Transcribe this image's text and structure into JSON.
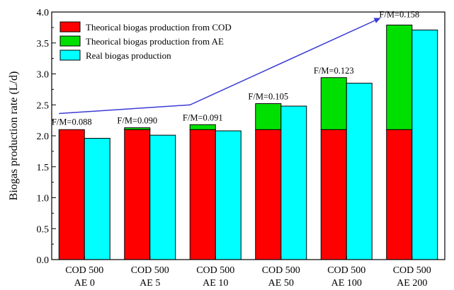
{
  "chart_data": {
    "type": "bar",
    "title": "",
    "xlabel": "",
    "ylabel": "Biogas production rate (L/d)",
    "ylim": [
      0,
      4.0
    ],
    "yticks": [
      "0.0",
      "0.5",
      "1.0",
      "1.5",
      "2.0",
      "2.5",
      "3.0",
      "3.5",
      "4.0"
    ],
    "categories": [
      [
        "COD 500",
        "AE 0"
      ],
      [
        "COD 500",
        "AE 5"
      ],
      [
        "COD 500",
        "AE 10"
      ],
      [
        "COD 500",
        "AE 50"
      ],
      [
        "COD 500",
        "AE 100"
      ],
      [
        "COD 500",
        "AE 200"
      ]
    ],
    "series": [
      {
        "name": "Theorical biogas production from COD",
        "color": "#ff0000",
        "stack": "theoretical",
        "values": [
          2.1,
          2.1,
          2.1,
          2.1,
          2.1,
          2.1
        ]
      },
      {
        "name": "Theorical biogas production from AE",
        "color": "#00e000",
        "stack": "theoretical",
        "values": [
          0.0,
          0.03,
          0.08,
          0.42,
          0.84,
          1.69
        ]
      },
      {
        "name": "Real biogas production",
        "color": "#00ffff",
        "stack": "real",
        "values": [
          1.96,
          2.01,
          2.08,
          2.48,
          2.85,
          3.71
        ]
      }
    ],
    "annotations": [
      "F/M=0.088",
      "F/M=0.090",
      "F/M=0.091",
      "F/M=0.105",
      "F/M=0.123",
      "F/M=0.158"
    ],
    "trend_arrow": {
      "color": "#3b3bd6",
      "points": [
        [
          0,
          2.36
        ],
        [
          2,
          2.5
        ],
        [
          4.9,
          3.9
        ]
      ]
    },
    "legend_position": "top-left",
    "grid": false
  }
}
